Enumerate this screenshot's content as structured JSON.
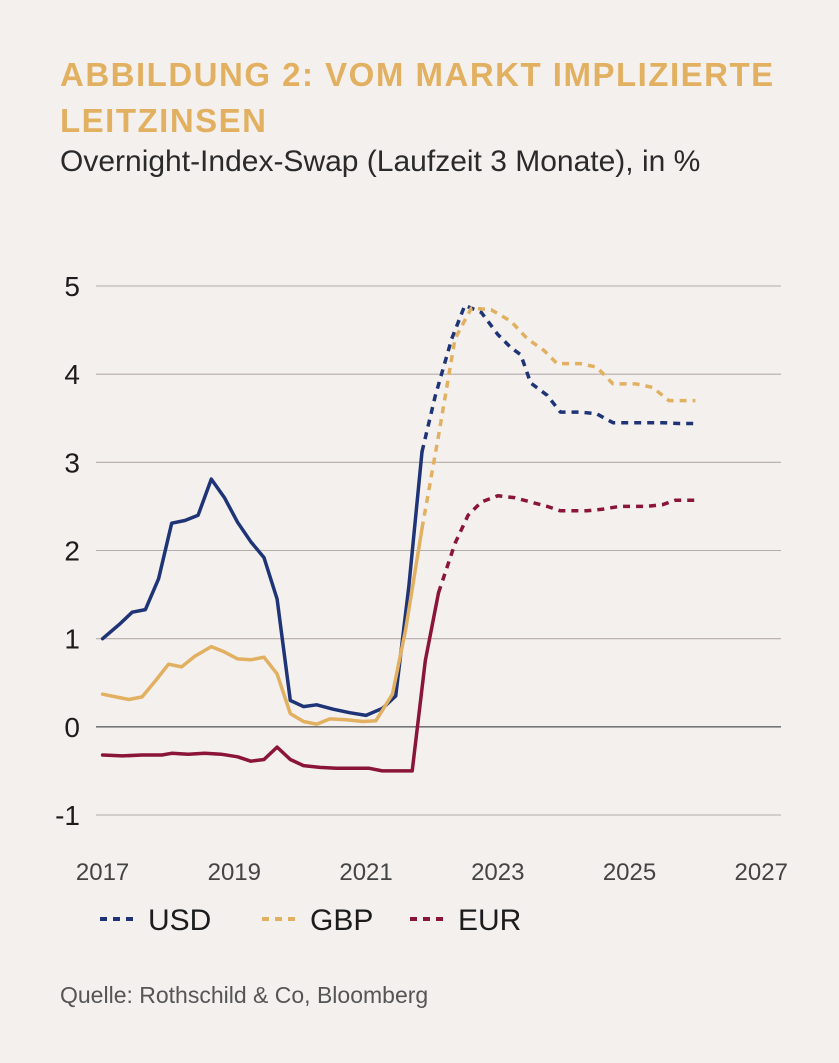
{
  "header": {
    "title": "ABBILDUNG 2: VOM MARKT IMPLIZIERTE LEITZINSEN",
    "subtitle": "Overnight-Index-Swap (Laufzeit 3 Monate), in %"
  },
  "footer": {
    "source": "Quelle: Rothschild & Co, Bloomberg"
  },
  "chart_data": {
    "type": "line",
    "title": "ABBILDUNG 2: VOM MARKT IMPLIZIERTE LEITZINSEN",
    "subtitle": "Overnight-Index-Swap (Laufzeit 3 Monate), in %",
    "xlim": [
      2016.9,
      2027.3
    ],
    "ylim": [
      -1,
      5
    ],
    "x_ticks": [
      2017,
      2019,
      2021,
      2023,
      2025,
      2027
    ],
    "x_tick_labels": [
      "2017",
      "2019",
      "2021",
      "2023",
      "2025",
      "2027"
    ],
    "y_ticks": [
      -1,
      0,
      1,
      2,
      3,
      4,
      5
    ],
    "y_tick_labels": [
      "-1",
      "0",
      "1",
      "2",
      "3",
      "4",
      "5"
    ],
    "grid": "horizontal",
    "zero_line": true,
    "legend": "bottom",
    "series": [
      {
        "name": "USD",
        "color": "#1f3476",
        "actual": [
          [
            2017.0,
            1.0
          ],
          [
            2017.25,
            1.16
          ],
          [
            2017.45,
            1.3
          ],
          [
            2017.65,
            1.33
          ],
          [
            2017.85,
            1.68
          ],
          [
            2018.05,
            2.31
          ],
          [
            2018.25,
            2.34
          ],
          [
            2018.45,
            2.4
          ],
          [
            2018.65,
            2.81
          ],
          [
            2018.85,
            2.6
          ],
          [
            2019.05,
            2.32
          ],
          [
            2019.25,
            2.1
          ],
          [
            2019.45,
            1.92
          ],
          [
            2019.65,
            1.45
          ],
          [
            2019.85,
            0.3
          ],
          [
            2020.05,
            0.23
          ],
          [
            2020.25,
            0.25
          ],
          [
            2020.5,
            0.2
          ],
          [
            2020.75,
            0.16
          ],
          [
            2021.0,
            0.13
          ],
          [
            2021.25,
            0.21
          ],
          [
            2021.45,
            0.35
          ],
          [
            2021.65,
            1.6
          ],
          [
            2021.85,
            3.12
          ]
        ],
        "forecast": [
          [
            2021.85,
            3.12
          ],
          [
            2022.05,
            3.75
          ],
          [
            2022.3,
            4.4
          ],
          [
            2022.5,
            4.78
          ],
          [
            2022.75,
            4.7
          ],
          [
            2023.0,
            4.45
          ],
          [
            2023.2,
            4.3
          ],
          [
            2023.35,
            4.22
          ],
          [
            2023.5,
            3.9
          ],
          [
            2023.75,
            3.76
          ],
          [
            2023.95,
            3.57
          ],
          [
            2024.25,
            3.57
          ],
          [
            2024.5,
            3.55
          ],
          [
            2024.75,
            3.45
          ],
          [
            2025.0,
            3.45
          ],
          [
            2025.5,
            3.45
          ],
          [
            2025.75,
            3.44
          ],
          [
            2026.0,
            3.44
          ]
        ]
      },
      {
        "name": "GBP",
        "color": "#e2b061",
        "actual": [
          [
            2017.0,
            0.37
          ],
          [
            2017.2,
            0.34
          ],
          [
            2017.4,
            0.31
          ],
          [
            2017.6,
            0.34
          ],
          [
            2017.8,
            0.52
          ],
          [
            2018.0,
            0.71
          ],
          [
            2018.2,
            0.68
          ],
          [
            2018.4,
            0.8
          ],
          [
            2018.65,
            0.91
          ],
          [
            2018.85,
            0.85
          ],
          [
            2019.05,
            0.77
          ],
          [
            2019.25,
            0.76
          ],
          [
            2019.45,
            0.79
          ],
          [
            2019.65,
            0.6
          ],
          [
            2019.85,
            0.15
          ],
          [
            2020.05,
            0.06
          ],
          [
            2020.25,
            0.03
          ],
          [
            2020.45,
            0.09
          ],
          [
            2020.7,
            0.08
          ],
          [
            2020.95,
            0.06
          ],
          [
            2021.15,
            0.07
          ],
          [
            2021.4,
            0.37
          ],
          [
            2021.6,
            1.1
          ],
          [
            2021.85,
            2.25
          ]
        ],
        "forecast": [
          [
            2021.85,
            2.25
          ],
          [
            2022.1,
            3.3
          ],
          [
            2022.35,
            4.4
          ],
          [
            2022.6,
            4.75
          ],
          [
            2022.9,
            4.73
          ],
          [
            2023.2,
            4.6
          ],
          [
            2023.45,
            4.4
          ],
          [
            2023.7,
            4.27
          ],
          [
            2023.9,
            4.12
          ],
          [
            2024.25,
            4.12
          ],
          [
            2024.5,
            4.08
          ],
          [
            2024.75,
            3.89
          ],
          [
            2025.1,
            3.89
          ],
          [
            2025.35,
            3.85
          ],
          [
            2025.6,
            3.7
          ],
          [
            2026.0,
            3.7
          ]
        ]
      },
      {
        "name": "EUR",
        "color": "#8a1538",
        "actual": [
          [
            2017.0,
            -0.32
          ],
          [
            2017.3,
            -0.33
          ],
          [
            2017.6,
            -0.32
          ],
          [
            2017.9,
            -0.32
          ],
          [
            2018.05,
            -0.3
          ],
          [
            2018.3,
            -0.31
          ],
          [
            2018.55,
            -0.3
          ],
          [
            2018.8,
            -0.31
          ],
          [
            2019.05,
            -0.34
          ],
          [
            2019.25,
            -0.39
          ],
          [
            2019.45,
            -0.37
          ],
          [
            2019.65,
            -0.23
          ],
          [
            2019.85,
            -0.37
          ],
          [
            2020.05,
            -0.44
          ],
          [
            2020.3,
            -0.46
          ],
          [
            2020.55,
            -0.47
          ],
          [
            2020.8,
            -0.47
          ],
          [
            2021.05,
            -0.47
          ],
          [
            2021.25,
            -0.5
          ],
          [
            2021.5,
            -0.5
          ],
          [
            2021.7,
            -0.5
          ],
          [
            2021.9,
            0.75
          ],
          [
            2022.1,
            1.52
          ]
        ],
        "forecast": [
          [
            2022.1,
            1.52
          ],
          [
            2022.35,
            2.08
          ],
          [
            2022.55,
            2.4
          ],
          [
            2022.75,
            2.55
          ],
          [
            2023.0,
            2.62
          ],
          [
            2023.25,
            2.6
          ],
          [
            2023.5,
            2.55
          ],
          [
            2023.75,
            2.5
          ],
          [
            2023.95,
            2.45
          ],
          [
            2024.35,
            2.45
          ],
          [
            2024.6,
            2.47
          ],
          [
            2024.85,
            2.5
          ],
          [
            2025.25,
            2.5
          ],
          [
            2025.5,
            2.52
          ],
          [
            2025.7,
            2.57
          ],
          [
            2026.0,
            2.57
          ]
        ]
      }
    ]
  }
}
